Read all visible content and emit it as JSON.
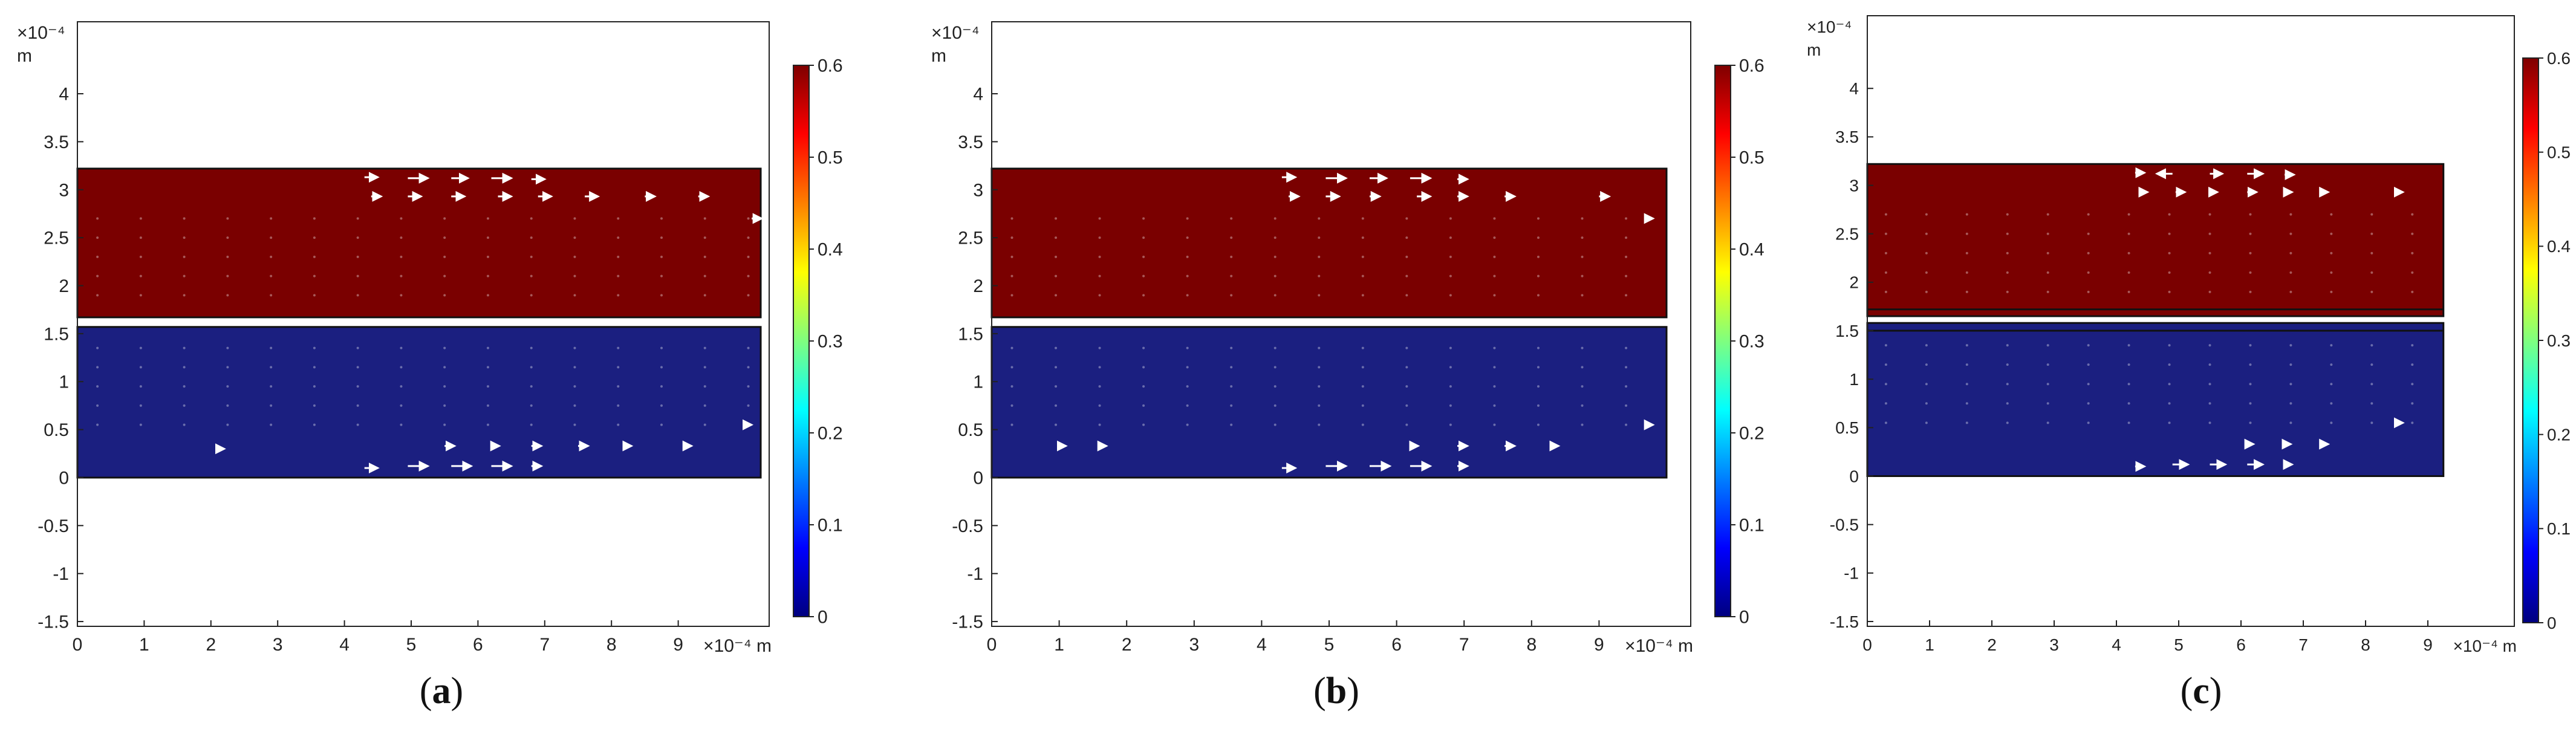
{
  "chart_data": [
    {
      "type": "heatmap",
      "panel_label": "a",
      "x_unit_label": "×10⁻⁴ m",
      "y_unit_label_top": "×10⁻⁴",
      "y_unit_label_bottom": "m",
      "xlim": [
        0,
        10
      ],
      "ylim": [
        -1.55,
        4.75
      ],
      "x_ticks": [
        0,
        1,
        2,
        3,
        4,
        5,
        6,
        7,
        8,
        9
      ],
      "x_tick_labels": [
        "0",
        "1",
        "2",
        "3",
        "4",
        "5",
        "6",
        "7",
        "8",
        "9"
      ],
      "y_ticks": [
        -1.5,
        -1,
        -0.5,
        0,
        0.5,
        1,
        1.5,
        2,
        2.5,
        3,
        3.5,
        4
      ],
      "y_tick_labels": [
        "-1.5",
        "-1",
        "-0.5",
        "0",
        "0.5",
        "1",
        "1.5",
        "2",
        "2.5",
        "3",
        "3.5",
        "4"
      ],
      "colorbar": {
        "min": 0,
        "max": 0.6,
        "ticks": [
          0,
          0.1,
          0.2,
          0.3,
          0.4,
          0.5,
          0.6
        ],
        "tick_labels": [
          "0",
          "0.1",
          "0.2",
          "0.3",
          "0.4",
          "0.5",
          "0.6"
        ]
      },
      "regions": [
        {
          "name": "upper",
          "x": [
            0,
            10.5
          ],
          "y": [
            1.67,
            3.22
          ],
          "value": 0.6,
          "color": "#7a0000"
        },
        {
          "name": "lower",
          "x": [
            0,
            10.5
          ],
          "y": [
            0,
            1.57
          ],
          "value": 0.0,
          "color": "#1b1f80"
        }
      ],
      "arrows_top": [
        {
          "x": 4.3,
          "y": 3.13,
          "dx": 0.2
        },
        {
          "x": 4.95,
          "y": 3.12,
          "dx": 0.3
        },
        {
          "x": 5.6,
          "y": 3.12,
          "dx": 0.25
        },
        {
          "x": 6.2,
          "y": 3.12,
          "dx": 0.3
        },
        {
          "x": 6.8,
          "y": 3.11,
          "dx": 0.2
        },
        {
          "x": 4.4,
          "y": 2.93,
          "dx": 0.15
        },
        {
          "x": 4.95,
          "y": 2.93,
          "dx": 0.2
        },
        {
          "x": 5.6,
          "y": 2.93,
          "dx": 0.2
        },
        {
          "x": 6.3,
          "y": 2.93,
          "dx": 0.2
        },
        {
          "x": 6.9,
          "y": 2.93,
          "dx": 0.2
        },
        {
          "x": 7.6,
          "y": 2.93,
          "dx": 0.2
        },
        {
          "x": 8.5,
          "y": 2.93,
          "dx": 0.15
        },
        {
          "x": 9.3,
          "y": 2.93,
          "dx": 0.15
        },
        {
          "x": 10.1,
          "y": 2.7,
          "dx": 0.15
        }
      ],
      "arrows_bottom": [
        {
          "x": 4.3,
          "y": 0.1,
          "dx": 0.2
        },
        {
          "x": 4.95,
          "y": 0.12,
          "dx": 0.3
        },
        {
          "x": 5.6,
          "y": 0.12,
          "dx": 0.3
        },
        {
          "x": 6.2,
          "y": 0.12,
          "dx": 0.3
        },
        {
          "x": 6.8,
          "y": 0.12,
          "dx": 0.15
        },
        {
          "x": 5.5,
          "y": 0.33,
          "dx": 0.15
        },
        {
          "x": 6.2,
          "y": 0.33,
          "dx": 0.12
        },
        {
          "x": 6.8,
          "y": 0.33,
          "dx": 0.15
        },
        {
          "x": 7.5,
          "y": 0.33,
          "dx": 0.15
        },
        {
          "x": 8.2,
          "y": 0.33,
          "dx": 0.1
        },
        {
          "x": 9.1,
          "y": 0.33,
          "dx": 0.1
        },
        {
          "x": 10.0,
          "y": 0.55,
          "dx": 0.1
        },
        {
          "x": 2.1,
          "y": 0.3,
          "dx": 0.1
        }
      ]
    },
    {
      "type": "heatmap",
      "panel_label": "b",
      "x_unit_label": "×10⁻⁴ m",
      "y_unit_label_top": "×10⁻⁴",
      "y_unit_label_bottom": "m",
      "xlim": [
        0,
        10
      ],
      "ylim": [
        -1.55,
        4.75
      ],
      "x_ticks": [
        0,
        1,
        2,
        3,
        4,
        5,
        6,
        7,
        8,
        9
      ],
      "x_tick_labels": [
        "0",
        "1",
        "2",
        "3",
        "4",
        "5",
        "6",
        "7",
        "8",
        "9"
      ],
      "y_ticks": [
        -1.5,
        -1,
        -0.5,
        0,
        0.5,
        1,
        1.5,
        2,
        2.5,
        3,
        3.5,
        4
      ],
      "y_tick_labels": [
        "-1.5",
        "-1",
        "-0.5",
        "0",
        "0.5",
        "1",
        "1.5",
        "2",
        "2.5",
        "3",
        "3.5",
        "4"
      ],
      "colorbar": {
        "min": 0,
        "max": 0.6,
        "ticks": [
          0,
          0.1,
          0.2,
          0.3,
          0.4,
          0.5,
          0.6
        ],
        "tick_labels": [
          "0",
          "0.1",
          "0.2",
          "0.3",
          "0.4",
          "0.5",
          "0.6"
        ]
      },
      "regions": [
        {
          "name": "upper",
          "x": [
            0,
            10.0
          ],
          "y": [
            1.67,
            3.22
          ],
          "value": 0.6,
          "color": "#7a0000"
        },
        {
          "name": "lower",
          "x": [
            0,
            10.0
          ],
          "y": [
            0,
            1.57
          ],
          "value": 0.0,
          "color": "#1b1f80"
        }
      ],
      "arrows_top": [
        {
          "x": 4.3,
          "y": 3.13,
          "dx": 0.2
        },
        {
          "x": 4.95,
          "y": 3.12,
          "dx": 0.3
        },
        {
          "x": 5.6,
          "y": 3.12,
          "dx": 0.25
        },
        {
          "x": 6.2,
          "y": 3.12,
          "dx": 0.3
        },
        {
          "x": 6.9,
          "y": 3.11,
          "dx": 0.15
        },
        {
          "x": 4.4,
          "y": 2.93,
          "dx": 0.15
        },
        {
          "x": 4.95,
          "y": 2.93,
          "dx": 0.2
        },
        {
          "x": 5.6,
          "y": 2.93,
          "dx": 0.15
        },
        {
          "x": 6.3,
          "y": 2.93,
          "dx": 0.2
        },
        {
          "x": 6.9,
          "y": 2.93,
          "dx": 0.15
        },
        {
          "x": 7.6,
          "y": 2.93,
          "dx": 0.15
        },
        {
          "x": 9.0,
          "y": 2.93,
          "dx": 0.15
        },
        {
          "x": 9.7,
          "y": 2.7,
          "dx": 0.1
        }
      ],
      "arrows_bottom": [
        {
          "x": 4.3,
          "y": 0.1,
          "dx": 0.2
        },
        {
          "x": 4.95,
          "y": 0.12,
          "dx": 0.3
        },
        {
          "x": 5.6,
          "y": 0.12,
          "dx": 0.3
        },
        {
          "x": 6.2,
          "y": 0.12,
          "dx": 0.3
        },
        {
          "x": 6.9,
          "y": 0.12,
          "dx": 0.15
        },
        {
          "x": 6.2,
          "y": 0.33,
          "dx": 0.12
        },
        {
          "x": 6.9,
          "y": 0.33,
          "dx": 0.15
        },
        {
          "x": 7.6,
          "y": 0.33,
          "dx": 0.15
        },
        {
          "x": 8.3,
          "y": 0.33,
          "dx": 0.1
        },
        {
          "x": 1.0,
          "y": 0.33,
          "dx": 0.1
        },
        {
          "x": 1.6,
          "y": 0.33,
          "dx": 0.1
        },
        {
          "x": 9.7,
          "y": 0.55,
          "dx": 0.1
        }
      ]
    },
    {
      "type": "heatmap",
      "panel_label": "c",
      "x_unit_label": "×10⁻⁴ m",
      "y_unit_label_top": "×10⁻⁴",
      "y_unit_label_bottom": "m",
      "xlim": [
        0,
        10
      ],
      "ylim": [
        -1.55,
        4.75
      ],
      "x_ticks": [
        0,
        1,
        2,
        3,
        4,
        5,
        6,
        7,
        8,
        9
      ],
      "x_tick_labels": [
        "0",
        "1",
        "2",
        "3",
        "4",
        "5",
        "6",
        "7",
        "8",
        "9"
      ],
      "y_ticks": [
        -1.5,
        -1,
        -0.5,
        0,
        0.5,
        1,
        1.5,
        2,
        2.5,
        3,
        3.5,
        4
      ],
      "y_tick_labels": [
        "-1.5",
        "-1",
        "-0.5",
        "0",
        "0.5",
        "1",
        "1.5",
        "2",
        "2.5",
        "3",
        "3.5",
        "4"
      ],
      "colorbar": {
        "min": 0,
        "max": 0.6,
        "ticks": [
          0,
          0.1,
          0.2,
          0.3,
          0.4,
          0.5,
          0.6
        ],
        "tick_labels": [
          "0",
          "0.1",
          "0.2",
          "0.3",
          "0.4",
          "0.5",
          "0.6"
        ]
      },
      "regions": [
        {
          "name": "upper",
          "x": [
            0,
            9.25
          ],
          "y": [
            1.65,
            3.22
          ],
          "value": 0.6,
          "color": "#7a0000"
        },
        {
          "name": "lower",
          "x": [
            0,
            9.25
          ],
          "y": [
            0,
            1.58
          ],
          "value": 0.0,
          "color": "#1b1f80"
        }
      ],
      "inner_lines": [
        1.72,
        1.5
      ],
      "arrows_top": [
        {
          "x": 4.3,
          "y": 3.13,
          "dx": 0.15
        },
        {
          "x": 4.9,
          "y": 3.12,
          "dx": -0.25
        },
        {
          "x": 5.5,
          "y": 3.12,
          "dx": 0.2
        },
        {
          "x": 6.1,
          "y": 3.12,
          "dx": 0.25
        },
        {
          "x": 6.7,
          "y": 3.11,
          "dx": 0.15
        },
        {
          "x": 4.4,
          "y": 2.93,
          "dx": 0.1
        },
        {
          "x": 4.95,
          "y": 2.93,
          "dx": 0.15
        },
        {
          "x": 5.5,
          "y": 2.93,
          "dx": 0.12
        },
        {
          "x": 6.1,
          "y": 2.93,
          "dx": 0.15
        },
        {
          "x": 6.7,
          "y": 2.93,
          "dx": 0.12
        },
        {
          "x": 7.3,
          "y": 2.93,
          "dx": 0.1
        },
        {
          "x": 8.5,
          "y": 2.93,
          "dx": 0.1
        }
      ],
      "arrows_bottom": [
        {
          "x": 4.3,
          "y": 0.1,
          "dx": 0.15
        },
        {
          "x": 4.9,
          "y": 0.12,
          "dx": 0.25
        },
        {
          "x": 5.5,
          "y": 0.12,
          "dx": 0.25
        },
        {
          "x": 6.1,
          "y": 0.12,
          "dx": 0.25
        },
        {
          "x": 6.7,
          "y": 0.12,
          "dx": 0.12
        },
        {
          "x": 6.1,
          "y": 0.33,
          "dx": 0.1
        },
        {
          "x": 6.7,
          "y": 0.33,
          "dx": 0.1
        },
        {
          "x": 7.3,
          "y": 0.33,
          "dx": 0.1
        },
        {
          "x": 8.5,
          "y": 0.55,
          "dx": 0.1
        }
      ]
    }
  ],
  "colors": {
    "frame": "#222222",
    "arrow": "#ffffff",
    "upper_fill": "#7a0000",
    "lower_fill": "#1b1f80"
  }
}
